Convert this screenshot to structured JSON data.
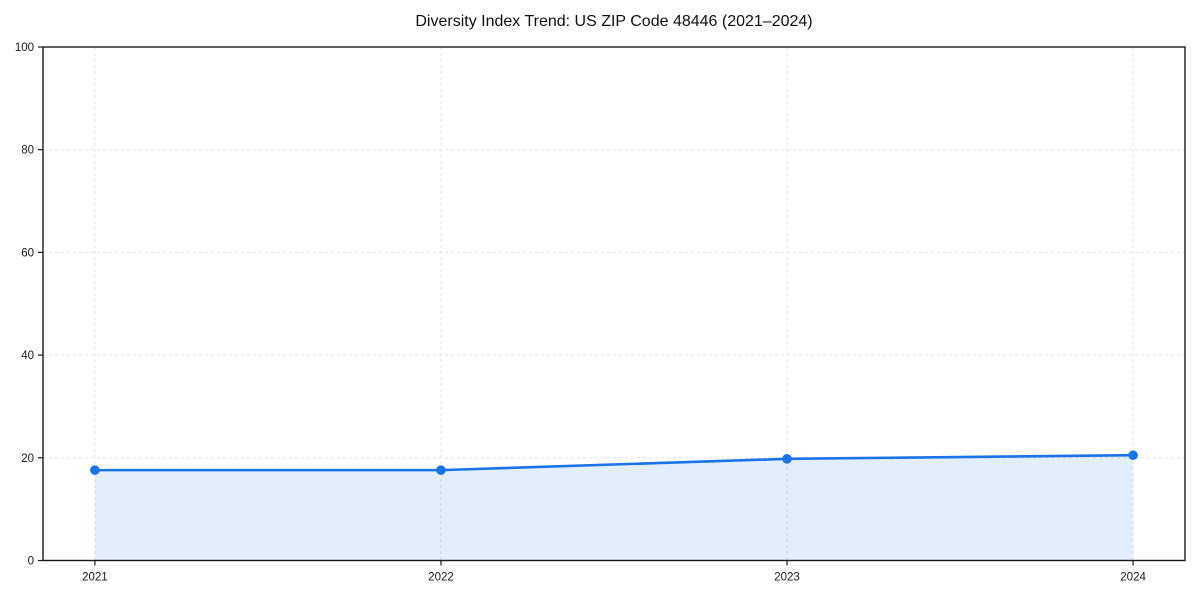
{
  "chart_data": {
    "type": "area",
    "title": "Diversity Index Trend: US ZIP Code 48446 (2021–2024)",
    "x": [
      "2021",
      "2022",
      "2023",
      "2024"
    ],
    "series": [
      {
        "name": "Diversity Index",
        "values": [
          17.6,
          17.6,
          19.8,
          20.5
        ]
      }
    ],
    "xlabel": "",
    "ylabel": "",
    "ylim": [
      0,
      100
    ],
    "yticks": [
      0,
      20,
      40,
      60,
      80,
      100
    ],
    "grid": true,
    "grid_style": "dashed",
    "legend_position": "none",
    "colors": {
      "line": "#1a73e8",
      "marker": "#1a73e8",
      "fill": "rgba(26,115,232,0.12)",
      "grid": "#e3e3e3",
      "spine": "#1a1a1a",
      "tick_text": "#1a1a1a",
      "title": "#111111",
      "background": "#ffffff"
    }
  }
}
